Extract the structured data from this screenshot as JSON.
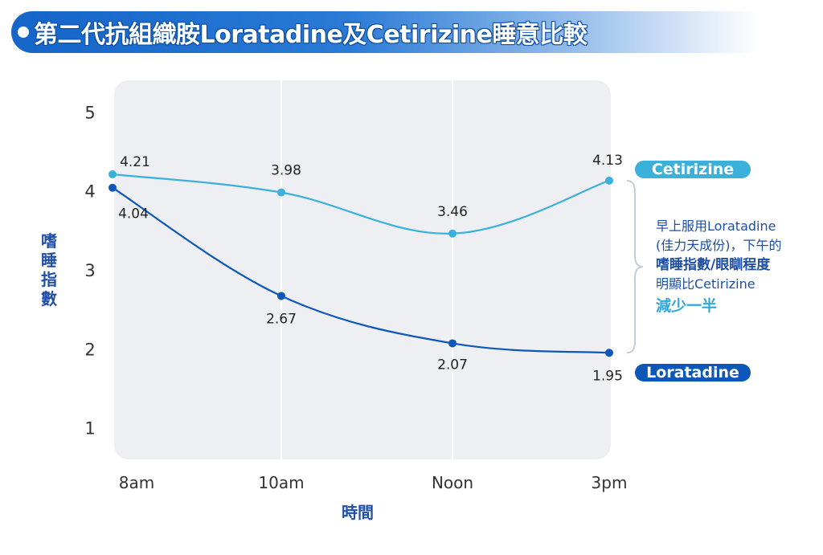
{
  "title": "第二代抗組織胺Loratadine及Cetirizine睡意比較",
  "note": {
    "line1": "早上服用Loratadine",
    "line2": "(佳力天成份)，下午的",
    "line3": "嗜睡指數/眼瞓程度",
    "line4": "明顯比Cetirizine",
    "line5": "減少一半"
  },
  "colors": {
    "cetirizine": "#3ab0da",
    "loratadine": "#0d57b8",
    "plot_bg": "#eeeff3",
    "axis_text": "#333333",
    "accent_text": "#1e4fa5"
  },
  "chart_data": {
    "type": "line",
    "categories": [
      "8am",
      "10am",
      "Noon",
      "3pm"
    ],
    "xlabel": "時間",
    "ylabel": "嗜睡指數",
    "ylim": [
      0.6,
      5.4
    ],
    "yticks": [
      1,
      2,
      3,
      4,
      5
    ],
    "grid": "vertical",
    "legend": "right, inline labels",
    "series": [
      {
        "name": "Cetirizine",
        "values": [
          4.21,
          3.98,
          3.46,
          4.13
        ],
        "labels": [
          "4.21",
          "3.98",
          "3.46",
          "4.13"
        ],
        "color": "#3ab0da"
      },
      {
        "name": "Loratadine",
        "values": [
          4.04,
          2.67,
          2.07,
          1.95
        ],
        "labels": [
          "4.04",
          "2.67",
          "2.07",
          "1.95"
        ],
        "color": "#0d57b8"
      }
    ]
  }
}
